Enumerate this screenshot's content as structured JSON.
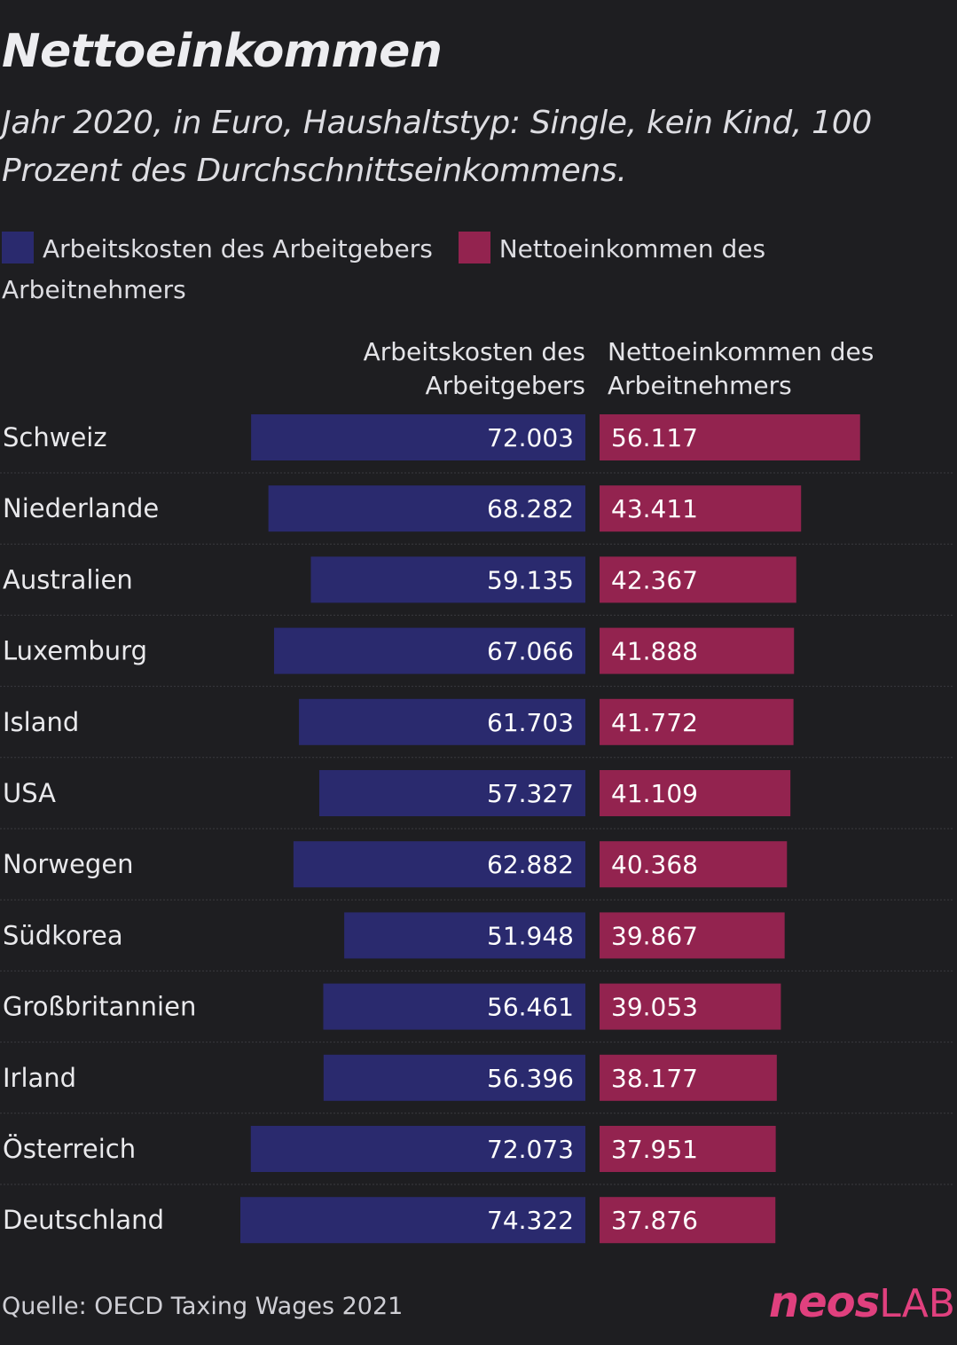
{
  "colors": {
    "background": "#1e1e21",
    "labor_cost": "#2a2a6e",
    "net_income": "#93234f",
    "logo": "#e0407e"
  },
  "chart_data": {
    "type": "bar",
    "title": "Nettoeinkommen",
    "subtitle": "Jahr 2020, in Euro, Haushaltstyp: Single, kein Kind, 100 Prozent des Durchschnittseinkommens.",
    "legend_placement": "top",
    "categories": [
      "Schweiz",
      "Niederlande",
      "Australien",
      "Luxemburg",
      "Island",
      "USA",
      "Norwegen",
      "Südkorea",
      "Großbritannien",
      "Irland",
      "Österreich",
      "Deutschland"
    ],
    "series": [
      {
        "name": "Arbeitskosten des Arbeitgebers",
        "values": [
          72003,
          68282,
          59135,
          67066,
          61703,
          57327,
          62882,
          51948,
          56461,
          56396,
          72073,
          74322
        ],
        "labels": [
          "72.003",
          "68.282",
          "59.135",
          "67.066",
          "61.703",
          "57.327",
          "62.882",
          "51.948",
          "56.461",
          "56.396",
          "72.073",
          "74.322"
        ]
      },
      {
        "name": "Nettoeinkommen des Arbeitnehmers",
        "values": [
          56117,
          43411,
          42367,
          41888,
          41772,
          41109,
          40368,
          39867,
          39053,
          38177,
          37951,
          37876
        ],
        "labels": [
          "56.117",
          "43.411",
          "42.367",
          "41.888",
          "41.772",
          "41.109",
          "40.368",
          "39.867",
          "39.053",
          "38.177",
          "37.951",
          "37.876"
        ]
      }
    ],
    "column_headers": {
      "left_line1": "Arbeitskosten des",
      "left_line2": "Arbeitgebers",
      "right_line1": "Nettoeinkommen des",
      "right_line2": "Arbeitnehmers"
    },
    "grid": false
  },
  "footer": {
    "source": "Quelle: OECD Taxing Wages 2021",
    "logo_main": "neos",
    "logo_sub": "LAB"
  }
}
